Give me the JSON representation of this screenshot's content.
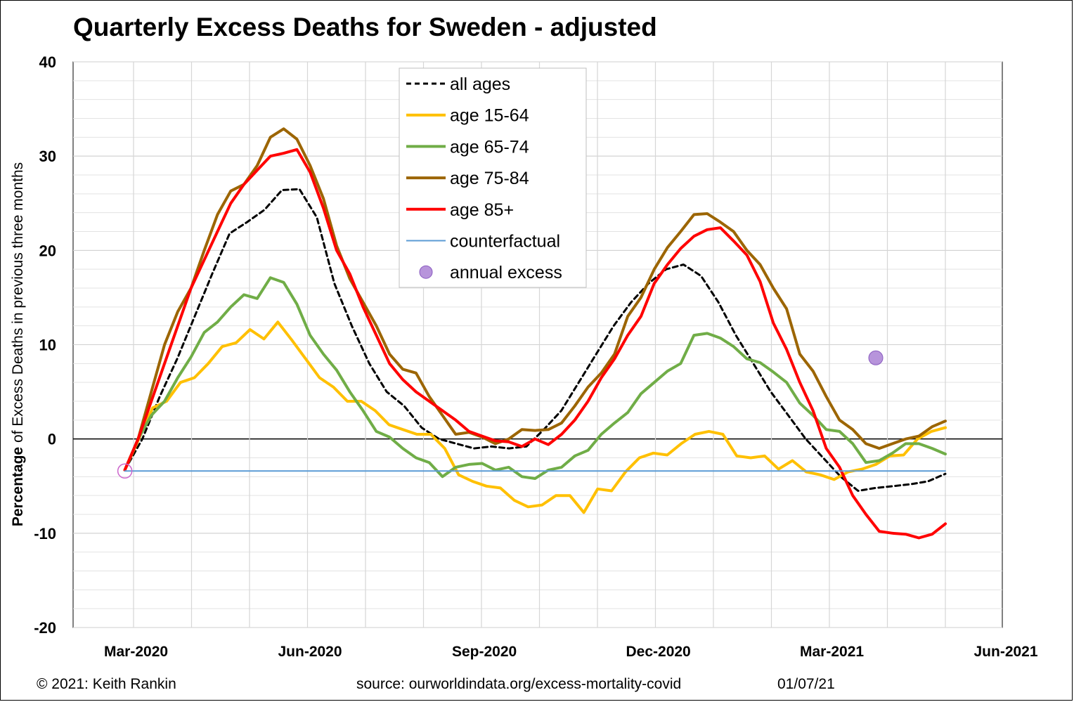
{
  "title": "Quarterly Excess Deaths for Sweden - adjusted",
  "footer": {
    "copyright": "© 2021: Keith Rankin",
    "source": "source: ourworldindata.org/excess-mortality-covid",
    "date": "01/07/21"
  },
  "chart_data": {
    "type": "line",
    "title": "Quarterly Excess Deaths for Sweden - adjusted",
    "ylabel_bold": "Percentage",
    "ylabel_rest": " of Excess Deaths in previous three months",
    "xlabel": "",
    "ylim": [
      -20,
      40
    ],
    "yticks": [
      40,
      30,
      20,
      10,
      0,
      -10,
      -20
    ],
    "xticks": [
      "Mar-2020",
      "Jun-2020",
      "Sep-2020",
      "Dec-2020",
      "Mar-2021",
      "Jun-2021"
    ],
    "grid": true,
    "legend_position": "top-center",
    "series": [
      {
        "name": "all ages",
        "color": "#000000",
        "style": "dashed",
        "values": [
          -3.3,
          0.0,
          4.5,
          8.5,
          13.0,
          17.5,
          21.8,
          23.0,
          24.3,
          26.4,
          26.5,
          23.5,
          16.5,
          12.0,
          8.0,
          5.0,
          3.5,
          1.2,
          0.0,
          -0.5,
          -1.0,
          -0.8,
          -1.0,
          -0.8,
          1.0,
          3.0,
          6.0,
          9.0,
          12.0,
          14.5,
          16.5,
          18.0,
          18.5,
          17.3,
          14.5,
          11.0,
          8.0,
          5.0,
          2.5,
          0.0,
          -2.0,
          -4.0,
          -5.5,
          -5.2,
          -5.0,
          -4.8,
          -4.5,
          -3.7
        ]
      },
      {
        "name": "age 15-64",
        "color": "#ffc000",
        "style": "solid",
        "values": [
          -3.3,
          0.0,
          3.3,
          4.0,
          6.0,
          6.5,
          8.0,
          9.8,
          10.2,
          11.6,
          10.6,
          12.4,
          10.5,
          8.5,
          6.5,
          5.5,
          4.0,
          4.0,
          3.0,
          1.5,
          1.0,
          0.5,
          0.5,
          -1.0,
          -3.8,
          -4.5,
          -5.0,
          -5.2,
          -6.5,
          -7.2,
          -7.0,
          -6.0,
          -6.0,
          -7.8,
          -5.3,
          -5.5,
          -3.5,
          -2.0,
          -1.5,
          -1.7,
          -0.5,
          0.5,
          0.8,
          0.5,
          -1.8,
          -2.0,
          -1.8,
          -3.2,
          -2.3,
          -3.5,
          -3.8,
          -4.3,
          -3.5,
          -3.2,
          -2.7,
          -1.8,
          -1.7,
          0.0,
          0.8,
          1.2
        ]
      },
      {
        "name": "age 65-74",
        "color": "#70ad47",
        "style": "solid",
        "values": [
          -3.3,
          0.0,
          2.5,
          4.0,
          6.5,
          8.7,
          11.3,
          12.4,
          14.0,
          15.3,
          14.9,
          17.1,
          16.6,
          14.3,
          11.0,
          9.0,
          7.3,
          5.0,
          3.0,
          0.8,
          0.2,
          -1.0,
          -2.0,
          -2.5,
          -4.0,
          -3.0,
          -2.7,
          -2.6,
          -3.3,
          -3.0,
          -4.0,
          -4.2,
          -3.3,
          -3.0,
          -1.8,
          -1.2,
          0.5,
          1.7,
          2.8,
          4.8,
          6.0,
          7.2,
          8.0,
          11.0,
          11.2,
          10.7,
          9.8,
          8.5,
          8.1,
          7.1,
          6.0,
          3.8,
          2.5,
          1.0,
          0.8,
          -0.5,
          -2.5,
          -2.3,
          -1.5,
          -0.5,
          -0.5,
          -1.0,
          -1.6
        ]
      },
      {
        "name": "age 75-84",
        "color": "#9c6500",
        "style": "solid",
        "values": [
          -3.3,
          0.0,
          5.0,
          10.0,
          13.5,
          16.0,
          20.0,
          23.8,
          26.3,
          27.0,
          29.0,
          32.0,
          32.9,
          31.8,
          29.0,
          25.5,
          20.5,
          17.0,
          14.5,
          12.0,
          9.0,
          7.4,
          7.0,
          4.5,
          2.5,
          0.5,
          0.7,
          0.2,
          -0.5,
          0.0,
          1.0,
          0.9,
          1.0,
          1.7,
          3.5,
          5.5,
          7.0,
          9.0,
          13.0,
          15.0,
          18.0,
          20.3,
          22.0,
          23.8,
          23.9,
          23.0,
          22.0,
          20.0,
          18.5,
          16.0,
          13.8,
          9.0,
          7.2,
          4.5,
          2.0,
          1.0,
          -0.5,
          -1.0,
          -0.5,
          0.0,
          0.3,
          1.3,
          1.9
        ]
      },
      {
        "name": "age 85+",
        "color": "#ff0000",
        "style": "solid",
        "values": [
          -3.3,
          0.0,
          4.0,
          8.0,
          12.0,
          16.0,
          19.0,
          22.0,
          25.0,
          27.0,
          28.5,
          30.0,
          30.3,
          30.7,
          28.3,
          24.5,
          20.0,
          17.5,
          14.0,
          11.0,
          8.0,
          6.3,
          5.0,
          4.0,
          3.0,
          2.0,
          0.8,
          0.3,
          -0.2,
          -0.3,
          -0.8,
          0.0,
          -0.6,
          0.5,
          2.0,
          4.0,
          6.5,
          8.5,
          11.0,
          13.0,
          16.5,
          18.5,
          20.2,
          21.5,
          22.2,
          22.4,
          21.0,
          19.5,
          16.7,
          12.3,
          9.5,
          6.0,
          3.0,
          -1.0,
          -3.0,
          -6.0,
          -8.0,
          -9.8,
          -10.0,
          -10.1,
          -10.5,
          -10.1,
          -9.0
        ]
      },
      {
        "name": "counterfactual",
        "color": "#5b9bd5",
        "style": "solid",
        "values": [
          -3.4,
          -3.4
        ]
      }
    ],
    "points": [
      {
        "name": "annual excess",
        "color": "#9966cc",
        "x_month": 12.8,
        "y": 8.6
      },
      {
        "name": "start marker",
        "color": "#cc66cc",
        "x_month": -0.15,
        "y": -3.4,
        "hollow": true
      }
    ]
  },
  "legend": [
    {
      "label": "all ages",
      "color": "#000000",
      "style": "dashed"
    },
    {
      "label": "age 15-64",
      "color": "#ffc000",
      "style": "solid"
    },
    {
      "label": "age 65-74",
      "color": "#70ad47",
      "style": "solid"
    },
    {
      "label": "age 75-84",
      "color": "#9c6500",
      "style": "solid"
    },
    {
      "label": "age 85+",
      "color": "#ff0000",
      "style": "solid"
    },
    {
      "label": "counterfactual",
      "color": "#5b9bd5",
      "style": "thin"
    },
    {
      "label": "annual excess",
      "color": "#9966cc",
      "style": "dot"
    }
  ]
}
